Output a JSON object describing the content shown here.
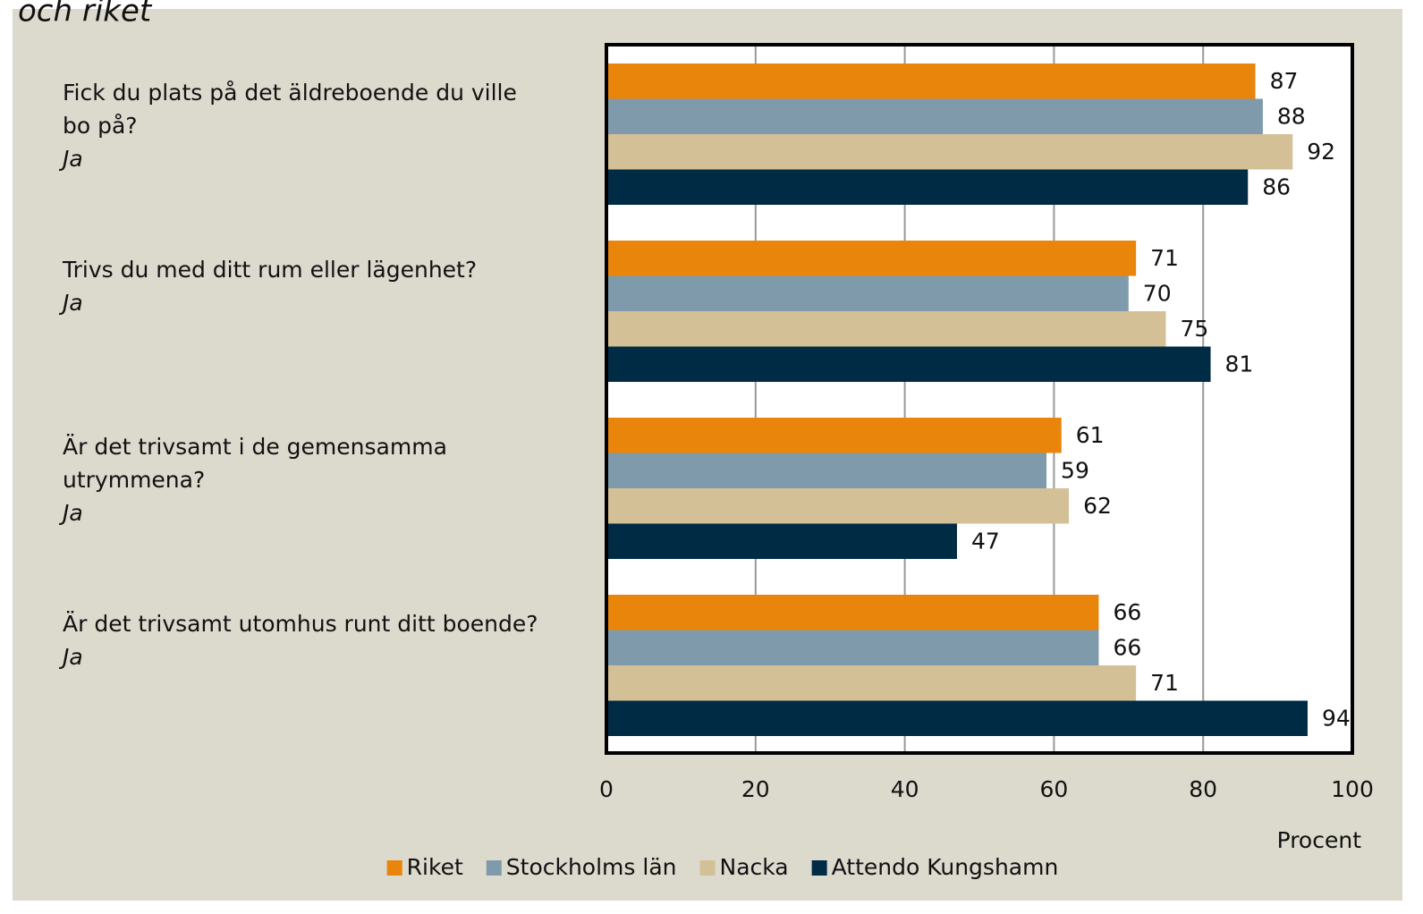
{
  "chart_data": {
    "type": "hbar",
    "title": "och riket",
    "categories": [
      "Fick du plats på det äldreboende du ville bo på?",
      "Trivs du med ditt rum eller lägenhet?",
      "Är det trivsamt i de gemensamma utrymmena?",
      "Är det trivsamt utomhus runt ditt boende?"
    ],
    "category_answers": [
      "Ja",
      "Ja",
      "Ja",
      "Ja"
    ],
    "series": [
      {
        "name": "Riket",
        "color": "#e8850a",
        "values": [
          87,
          71,
          61,
          66
        ]
      },
      {
        "name": "Stockholms län",
        "color": "#7f9bab",
        "values": [
          88,
          70,
          59,
          66
        ]
      },
      {
        "name": "Nacka",
        "color": "#d4c096",
        "values": [
          92,
          75,
          62,
          71
        ]
      },
      {
        "name": "Attendo Kungshamn",
        "color": "#002b45",
        "values": [
          86,
          81,
          47,
          94
        ]
      }
    ],
    "xlabel": "Procent",
    "xlim": [
      0,
      100
    ],
    "xticks": [
      0,
      20,
      40,
      60,
      80,
      100
    ],
    "grid": true,
    "legend": "bottom"
  }
}
